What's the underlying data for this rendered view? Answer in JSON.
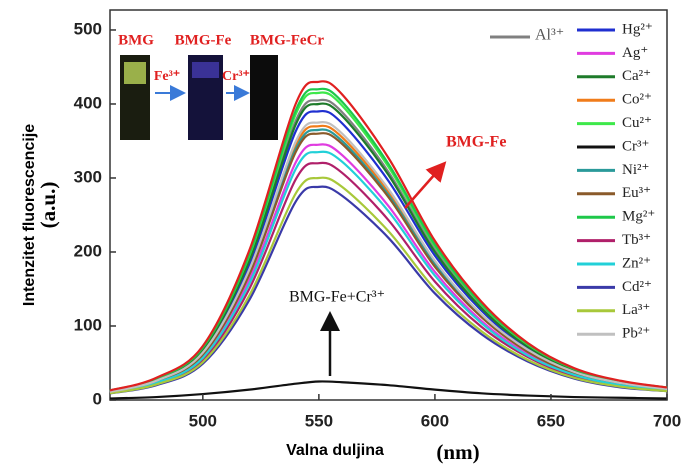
{
  "chart_data": {
    "type": "line",
    "y_label": "Intenzitet fluorescencije",
    "y_unit": "(a.u.)",
    "x_label": "Valna duljina",
    "x_unit": "(nm)",
    "xlim": [
      460,
      700
    ],
    "xticks": [
      500,
      550,
      600,
      650,
      700
    ],
    "ylim": [
      0,
      527
    ],
    "yticks": [
      0,
      100,
      200,
      300,
      400,
      500
    ],
    "x": [
      460,
      480,
      500,
      520,
      540,
      550,
      560,
      580,
      600,
      620,
      640,
      660,
      680,
      700
    ],
    "series": [
      {
        "name": "Al³⁺",
        "color": "#808080",
        "values": [
          12,
          28,
          69,
          190,
          377,
          405,
          389,
          308,
          203,
          126,
          73,
          41,
          24,
          16
        ]
      },
      {
        "name": "Hg²⁺",
        "color": "#1f2fd0",
        "values": [
          12,
          27,
          66,
          183,
          363,
          390,
          374,
          296,
          195,
          121,
          70,
          39,
          23,
          16
        ]
      },
      {
        "name": "Ag⁺",
        "color": "#e03ce0",
        "values": [
          10,
          24,
          59,
          162,
          321,
          345,
          331,
          262,
          173,
          107,
          62,
          35,
          21,
          14
        ]
      },
      {
        "name": "Ca²⁺",
        "color": "#1e7b2a",
        "values": [
          12,
          28,
          68,
          188,
          372,
          400,
          384,
          304,
          200,
          124,
          72,
          40,
          24,
          16
        ]
      },
      {
        "name": "Co²⁺",
        "color": "#f07c1a",
        "values": [
          11,
          26,
          63,
          174,
          344,
          370,
          355,
          281,
          185,
          115,
          67,
          37,
          22,
          15
        ]
      },
      {
        "name": "Cu²⁺",
        "color": "#3ee84a",
        "values": [
          12,
          29,
          71,
          195,
          386,
          415,
          398,
          315,
          208,
          129,
          75,
          42,
          25,
          17
        ]
      },
      {
        "name": "Cr³⁺",
        "color": "#111111",
        "values": [
          2,
          4,
          8,
          14,
          22,
          25,
          24,
          20,
          14,
          9,
          6,
          4,
          3,
          2
        ]
      },
      {
        "name": "Ni²⁺",
        "color": "#2a9a9a",
        "values": [
          11,
          26,
          62,
          172,
          339,
          365,
          350,
          277,
          183,
          113,
          66,
          37,
          22,
          15
        ]
      },
      {
        "name": "Eu³⁺",
        "color": "#8a5a2a",
        "values": [
          11,
          25,
          61,
          169,
          335,
          360,
          346,
          274,
          180,
          112,
          65,
          36,
          22,
          14
        ]
      },
      {
        "name": "Mg²⁺",
        "color": "#1ec84a",
        "values": [
          13,
          29,
          71,
          197,
          391,
          420,
          403,
          319,
          210,
          130,
          76,
          42,
          25,
          17
        ]
      },
      {
        "name": "Tb³⁺",
        "color": "#b0206a",
        "values": [
          10,
          22,
          54,
          150,
          298,
          320,
          307,
          243,
          160,
          99,
          58,
          32,
          19,
          13
        ]
      },
      {
        "name": "Zn²⁺",
        "color": "#22d0d8",
        "values": [
          10,
          23,
          57,
          157,
          312,
          335,
          322,
          255,
          168,
          104,
          60,
          34,
          20,
          13
        ]
      },
      {
        "name": "Cd²⁺",
        "color": "#3a3aa8",
        "values": [
          9,
          20,
          49,
          135,
          268,
          288,
          276,
          219,
          144,
          89,
          52,
          29,
          17,
          12
        ]
      },
      {
        "name": "La³⁺",
        "color": "#a8c83a",
        "values": [
          9,
          21,
          51,
          141,
          279,
          300,
          288,
          228,
          150,
          93,
          54,
          30,
          18,
          12
        ]
      },
      {
        "name": "Pb²⁺",
        "color": "#c0c0c0",
        "values": [
          11,
          26,
          64,
          176,
          349,
          375,
          360,
          285,
          188,
          116,
          68,
          38,
          23,
          15
        ]
      },
      {
        "name": "BMG-Fe",
        "color": "#e02020",
        "values": [
          13,
          30,
          73,
          202,
          400,
          430,
          413,
          327,
          215,
          133,
          77,
          43,
          26,
          17
        ]
      }
    ],
    "annotation": "BMG-Fe+Cr³⁺",
    "inset": {
      "labels": [
        "BMG",
        "BMG-Fe",
        "BMG-FeCr"
      ],
      "arrows": [
        "Fe³⁺",
        "Cr³⁺"
      ]
    }
  }
}
